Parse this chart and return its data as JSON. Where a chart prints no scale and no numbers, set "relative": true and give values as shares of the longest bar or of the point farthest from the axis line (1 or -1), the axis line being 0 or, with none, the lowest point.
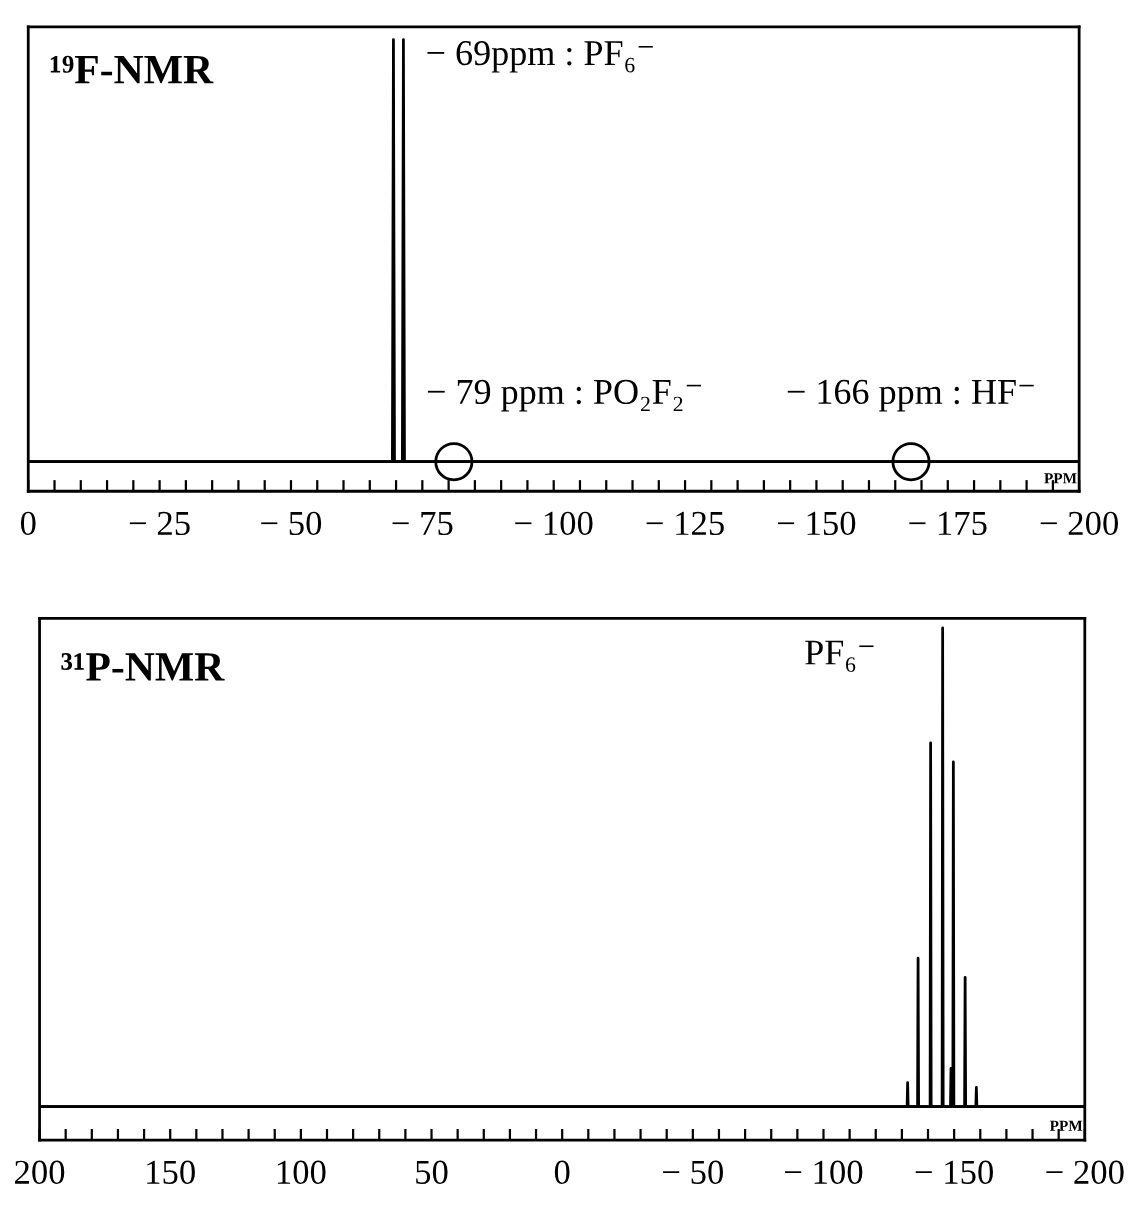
{
  "chart_data": [
    {
      "type": "line",
      "title": "¹⁹F-NMR",
      "xlabel": "PPM",
      "relative": true,
      "tick_labels": "x",
      "xlim": [
        0,
        -200
      ],
      "xticks": [
        0,
        {
          "value": -5,
          "label": null
        },
        {
          "value": -10,
          "label": null
        },
        {
          "value": -15,
          "label": null
        },
        {
          "value": -20,
          "label": null
        },
        {
          "value": -25,
          "label": "− 25"
        },
        {
          "value": -30,
          "label": null
        },
        {
          "value": -35,
          "label": null
        },
        {
          "value": -40,
          "label": null
        },
        {
          "value": -45,
          "label": null
        },
        {
          "value": -50,
          "label": "− 50"
        },
        {
          "value": -55,
          "label": null
        },
        {
          "value": -60,
          "label": null
        },
        {
          "value": -65,
          "label": null
        },
        {
          "value": -70,
          "label": null
        },
        {
          "value": -75,
          "label": "− 75"
        },
        {
          "value": -80,
          "label": null
        },
        {
          "value": -85,
          "label": null
        },
        {
          "value": -90,
          "label": null
        },
        {
          "value": -95,
          "label": null
        },
        {
          "value": -100,
          "label": "− 100"
        },
        {
          "value": -105,
          "label": null
        },
        {
          "value": -110,
          "label": null
        },
        {
          "value": -115,
          "label": null
        },
        {
          "value": -120,
          "label": null
        },
        {
          "value": -125,
          "label": "− 125"
        },
        {
          "value": -130,
          "label": null
        },
        {
          "value": -135,
          "label": null
        },
        {
          "value": -140,
          "label": null
        },
        {
          "value": -145,
          "label": null
        },
        {
          "value": -150,
          "label": "− 150"
        },
        {
          "value": -155,
          "label": null
        },
        {
          "value": -160,
          "label": null
        },
        {
          "value": -165,
          "label": null
        },
        {
          "value": -170,
          "label": null
        },
        {
          "value": -175,
          "label": "− 175"
        },
        {
          "value": -180,
          "label": null
        },
        {
          "value": -185,
          "label": null
        },
        {
          "value": -190,
          "label": null
        },
        {
          "value": -195,
          "label": null
        },
        {
          "value": -200,
          "label": "− 200"
        }
      ],
      "series": [
        {
          "color": "#000000",
          "x": [
            0,
            -69.3,
            -69.5,
            -69.7,
            -71.2,
            -71.4,
            -71.6,
            -200
          ],
          "values": [
            0,
            0,
            1,
            0,
            0,
            1,
            0,
            0
          ]
        },
        {
          "type": "scatter",
          "marker": "circle",
          "color": "#000000",
          "x": [
            -81,
            -168
          ],
          "values": [
            0,
            0
          ]
        }
      ],
      "annotations": [
        {
          "text": "− 69ppm : PF₆⁻",
          "x": -71.4,
          "y": 1
        },
        {
          "text": "− 79 ppm : PO₂F₂⁻",
          "x": -81,
          "y": 0
        },
        {
          "text": "− 166 ppm : HF⁻",
          "x": -168,
          "y": 0
        }
      ]
    },
    {
      "type": "line",
      "title": "³¹P-NMR",
      "xlabel": "PPM",
      "relative": true,
      "tick_labels": "x",
      "xlim": [
        200,
        -200
      ],
      "xticks": [
        200,
        {
          "value": 190,
          "label": null
        },
        {
          "value": 180,
          "label": null
        },
        {
          "value": 170,
          "label": null
        },
        {
          "value": 160,
          "label": null
        },
        150,
        {
          "value": 140,
          "label": null
        },
        {
          "value": 130,
          "label": null
        },
        {
          "value": 120,
          "label": null
        },
        {
          "value": 110,
          "label": null
        },
        100,
        {
          "value": 90,
          "label": null
        },
        {
          "value": 80,
          "label": null
        },
        {
          "value": 70,
          "label": null
        },
        {
          "value": 60,
          "label": null
        },
        50,
        {
          "value": 40,
          "label": null
        },
        {
          "value": 30,
          "label": null
        },
        {
          "value": 20,
          "label": null
        },
        {
          "value": 10,
          "label": null
        },
        0,
        {
          "value": -10,
          "label": null
        },
        {
          "value": -20,
          "label": null
        },
        {
          "value": -30,
          "label": null
        },
        {
          "value": -40,
          "label": null
        },
        {
          "value": -50,
          "label": "− 50"
        },
        {
          "value": -60,
          "label": null
        },
        {
          "value": -70,
          "label": null
        },
        {
          "value": -80,
          "label": null
        },
        {
          "value": -90,
          "label": null
        },
        {
          "value": -100,
          "label": "− 100"
        },
        {
          "value": -110,
          "label": null
        },
        {
          "value": -120,
          "label": null
        },
        {
          "value": -130,
          "label": null
        },
        {
          "value": -140,
          "label": null
        },
        {
          "value": -150,
          "label": "− 150"
        },
        {
          "value": -160,
          "label": null
        },
        {
          "value": -170,
          "label": null
        },
        {
          "value": -180,
          "label": null
        },
        {
          "value": -190,
          "label": null
        },
        {
          "value": -200,
          "label": "− 200"
        }
      ],
      "series": [
        {
          "color": "#000000",
          "x": [
            200,
            -132.0,
            -132.2,
            -132.4,
            -136.0,
            -136.2,
            -136.4,
            -140.8,
            -141.0,
            -141.2,
            -145.4,
            -145.6,
            -145.8,
            -148.6,
            -148.8,
            -149.0,
            -149.5,
            -149.7,
            -149.9,
            -154.0,
            -154.2,
            -154.4,
            -158.3,
            -158.5,
            -158.7,
            -200
          ],
          "values": [
            0,
            0,
            0.05,
            0,
            0,
            0.31,
            0,
            0,
            0.76,
            0,
            0,
            1,
            0,
            0,
            0.08,
            0,
            0,
            0.72,
            0,
            0,
            0.27,
            0,
            0,
            0.04,
            0,
            0
          ]
        }
      ],
      "annotations": [
        {
          "text": "PF₆⁻",
          "x": -145.6,
          "y": 1
        }
      ]
    }
  ]
}
